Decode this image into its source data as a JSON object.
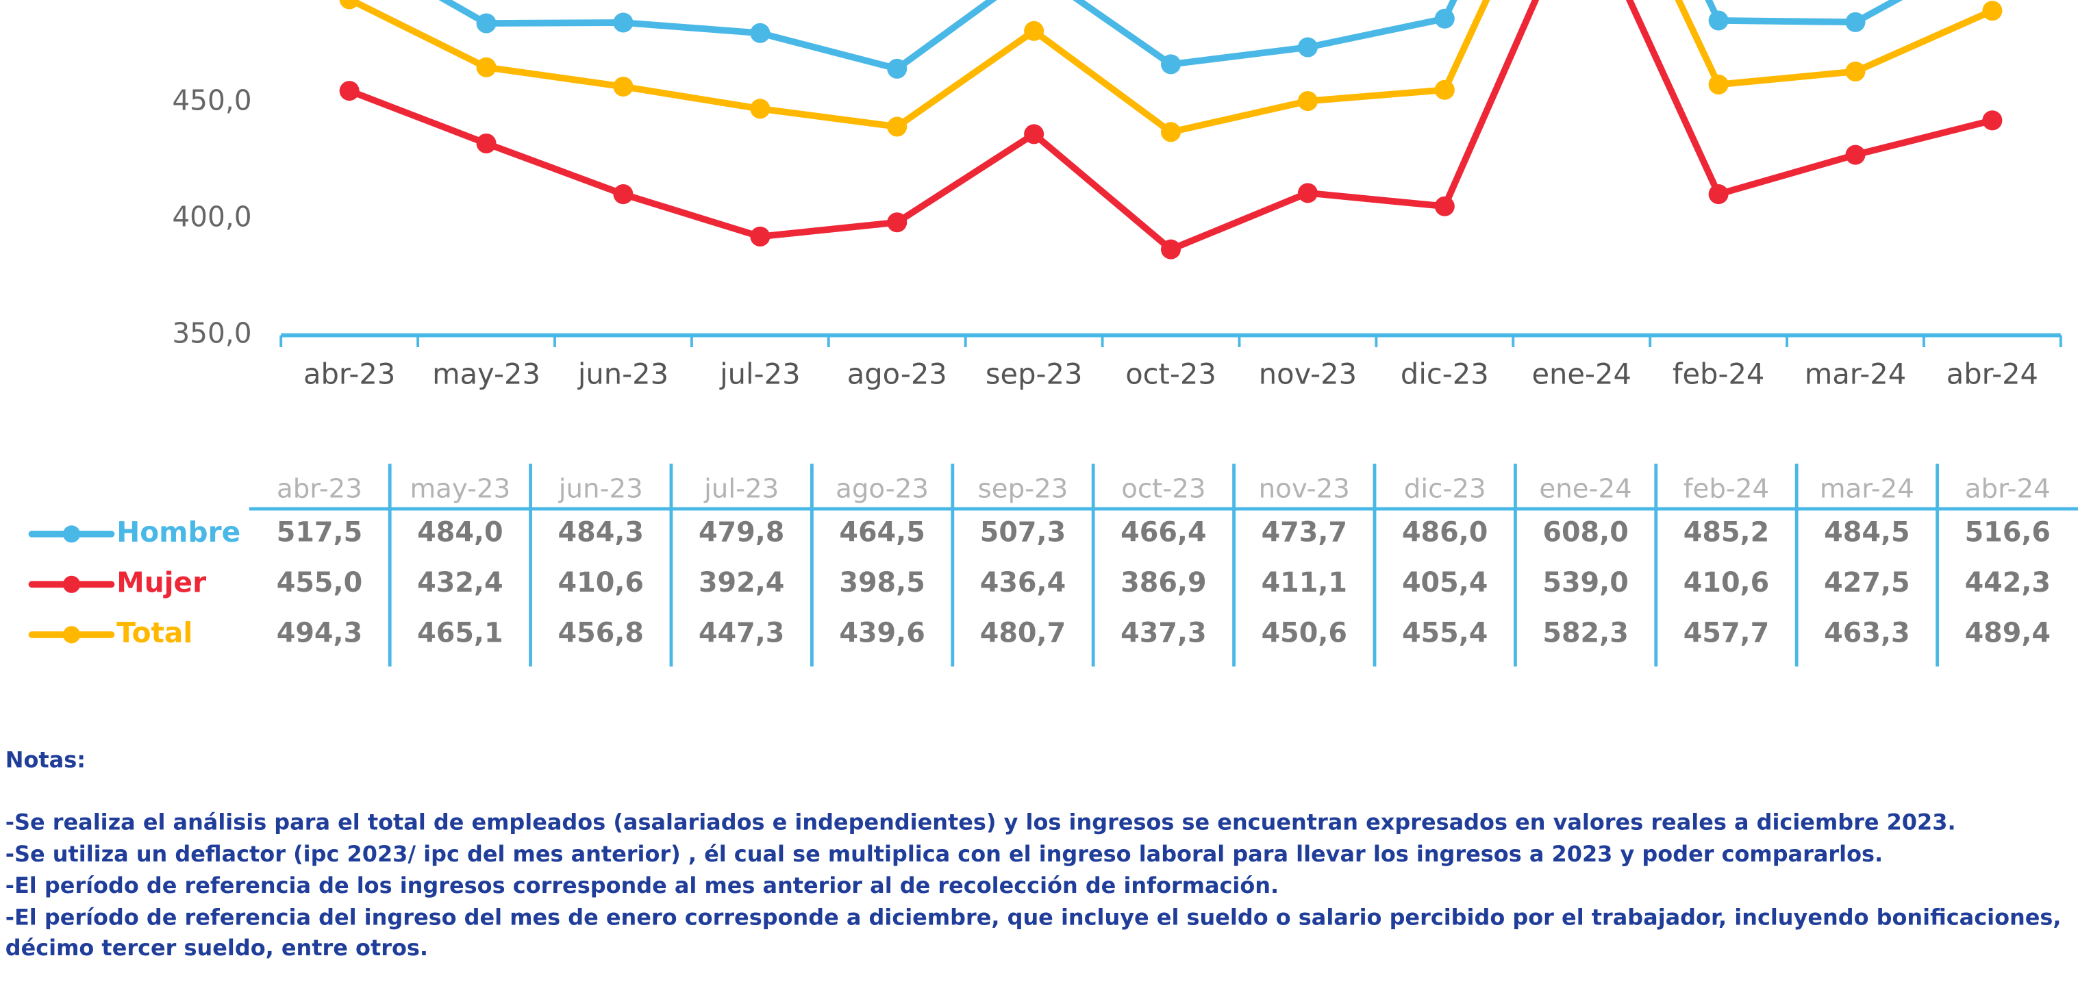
{
  "chart_data": {
    "type": "line",
    "categories": [
      "abr-23",
      "may-23",
      "jun-23",
      "jul-23",
      "ago-23",
      "sep-23",
      "oct-23",
      "nov-23",
      "dic-23",
      "ene-24",
      "feb-24",
      "mar-24",
      "abr-24"
    ],
    "series": [
      {
        "name": "Hombre",
        "color": "#4ab8e6",
        "values": [
          517.5,
          484.0,
          484.3,
          479.8,
          464.5,
          507.3,
          466.4,
          473.7,
          486.0,
          608.0,
          485.2,
          484.5,
          516.6
        ],
        "value_labels": [
          "517,5",
          "484,0",
          "484,3",
          "479,8",
          "464,5",
          "507,3",
          "466,4",
          "473,7",
          "486,0",
          "608,0",
          "485,2",
          "484,5",
          "516,6"
        ]
      },
      {
        "name": "Mujer",
        "color": "#ee2737",
        "values": [
          455.0,
          432.4,
          410.6,
          392.4,
          398.5,
          436.4,
          386.9,
          411.1,
          405.4,
          539.0,
          410.6,
          427.5,
          442.3
        ],
        "value_labels": [
          "455,0",
          "432,4",
          "410,6",
          "392,4",
          "398,5",
          "436,4",
          "386,9",
          "411,1",
          "405,4",
          "539,0",
          "410,6",
          "427,5",
          "442,3"
        ]
      },
      {
        "name": "Total",
        "color": "#ffb700",
        "values": [
          494.3,
          465.1,
          456.8,
          447.3,
          439.6,
          480.7,
          437.3,
          450.6,
          455.4,
          582.3,
          457.7,
          463.3,
          489.4
        ],
        "value_labels": [
          "494,3",
          "465,1",
          "456,8",
          "447,3",
          "439,6",
          "480,7",
          "437,3",
          "450,6",
          "455,4",
          "582,3",
          "457,7",
          "463,3",
          "489,4"
        ]
      }
    ],
    "ylim": [
      350,
      494
    ],
    "yticks": [
      {
        "value": 350,
        "label": "350,0"
      },
      {
        "value": 400,
        "label": "400,0"
      },
      {
        "value": 450,
        "label": "450,0"
      }
    ]
  },
  "notes": {
    "title": "Notas:",
    "lines": [
      "-Se realiza el análisis para el total de empleados (asalariados e independientes) y los ingresos se encuentran expresados en valores reales a diciembre 2023.",
      "-Se utiliza un deflactor (ipc 2023/ ipc del mes anterior) , él cual se multiplica con el ingreso laboral para llevar los ingresos a 2023 y poder compararlos.",
      "-El período de referencia de los ingresos corresponde al mes anterior al de recolección de información.",
      "-El período de referencia del ingreso del mes de enero corresponde a diciembre, que incluye el sueldo o salario percibido por el trabajador, incluyendo bonificaciones, décimo tercer sueldo, entre otros."
    ]
  }
}
